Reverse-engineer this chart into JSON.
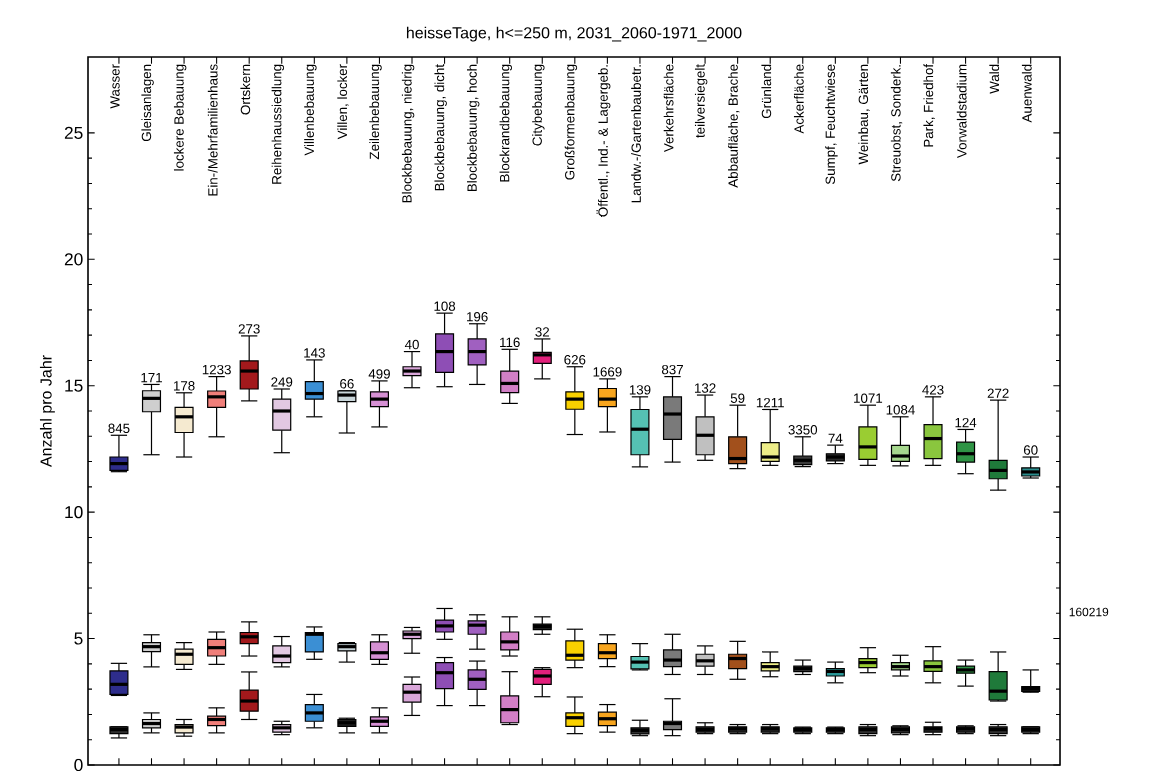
{
  "chart_data": {
    "type": "box",
    "title": "heisseTage, h<=250 m, 2031_2060-1971_2000",
    "ylabel": "Anzahl pro Jahr",
    "categories": [
      "Wasser",
      "Gleisanlagen",
      "lockere Bebauung",
      "Ein-/Mehrfamilienhaus",
      "Ortskern",
      "Reihenhaussiedlung",
      "Villenbebauung",
      "Villen, locker",
      "Zeilenbebauung",
      "Blockbebauung, niedrig",
      "Blockbebauung, dicht",
      "Blockbebauung, hoch",
      "Blockrandbebauung",
      "Citybebauung",
      "Großformenbauung",
      "Öffentl., Ind.- & Lagergeb.",
      "Landw.-/Gartenbaubetr.",
      "Verkehrsfläche",
      "teilversiegelt",
      "Abbaufläche, Brache",
      "Grünland",
      "Ackerfläche",
      "Sumpf, Feuchtwiese",
      "Weinbau, Gärten",
      "Streuobst, Sonderk.",
      "Park, Friedhof",
      "Vorwaldstadium",
      "Wald",
      "Auenwald"
    ],
    "ylim": [
      0,
      28
    ],
    "yticks": [
      0,
      5,
      10,
      15,
      20,
      25
    ],
    "series": [
      {
        "colors": [
          "#2e2d8c",
          "#cfcfcf",
          "#f5ead0",
          "#f07f7a",
          "#a3191c",
          "#e2c8e2",
          "#3b8fd4",
          "#c9d6da",
          "#d690d4",
          "#d9a6d9",
          "#8e4eb5",
          "#a060c0",
          "#d27fc6",
          "#e3207c",
          "#f9d100",
          "#f7a51e",
          "#55c1b3",
          "#7a7a7a",
          "#c0c0c0",
          "#a2501c",
          "#eeee88",
          "#3a3a3a",
          "#2a2a2a",
          "#9acd32",
          "#a6d88e",
          "#8ac63e",
          "#2f9445",
          "#1f7a3a",
          "#2b8e8e"
        ],
        "boxes": [
          {
            "low": 11.6,
            "q1": 11.65,
            "median": 11.92,
            "q3": 12.18,
            "high": 13.04
          },
          {
            "low": 12.27,
            "q1": 13.97,
            "median": 14.5,
            "q3": 14.8,
            "high": 15.05
          },
          {
            "low": 12.18,
            "q1": 13.15,
            "median": 13.77,
            "q3": 14.14,
            "high": 14.72
          },
          {
            "low": 12.98,
            "q1": 14.14,
            "median": 14.56,
            "q3": 14.79,
            "high": 15.36
          },
          {
            "low": 14.4,
            "q1": 14.87,
            "median": 15.58,
            "q3": 15.98,
            "high": 16.97
          },
          {
            "low": 12.35,
            "q1": 13.24,
            "median": 14.0,
            "q3": 14.47,
            "high": 14.87
          },
          {
            "low": 13.77,
            "q1": 14.47,
            "median": 14.69,
            "q3": 15.16,
            "high": 16.02
          },
          {
            "low": 13.13,
            "q1": 14.37,
            "median": 14.63,
            "q3": 14.79,
            "high": 14.8
          },
          {
            "low": 13.37,
            "q1": 14.17,
            "median": 14.47,
            "q3": 14.76,
            "high": 15.19
          },
          {
            "low": 14.92,
            "q1": 15.4,
            "median": 15.58,
            "q3": 15.75,
            "high": 16.35
          },
          {
            "low": 14.96,
            "q1": 15.53,
            "median": 16.35,
            "q3": 17.05,
            "high": 17.87
          },
          {
            "low": 15.05,
            "q1": 15.82,
            "median": 16.35,
            "q3": 16.85,
            "high": 17.45
          },
          {
            "low": 14.3,
            "q1": 14.73,
            "median": 15.09,
            "q3": 15.58,
            "high": 16.44
          },
          {
            "low": 15.27,
            "q1": 15.88,
            "median": 16.22,
            "q3": 16.32,
            "high": 16.85
          },
          {
            "low": 13.07,
            "q1": 14.07,
            "median": 14.47,
            "q3": 14.76,
            "high": 15.75
          },
          {
            "low": 13.17,
            "q1": 14.17,
            "median": 14.47,
            "q3": 14.89,
            "high": 15.27
          },
          {
            "low": 11.79,
            "q1": 12.27,
            "median": 13.28,
            "q3": 14.06,
            "high": 14.56
          },
          {
            "low": 11.98,
            "q1": 12.88,
            "median": 13.88,
            "q3": 14.56,
            "high": 15.36
          },
          {
            "low": 12.05,
            "q1": 12.27,
            "median": 13.04,
            "q3": 13.77,
            "high": 14.63
          },
          {
            "low": 11.72,
            "q1": 11.92,
            "median": 12.12,
            "q3": 12.98,
            "high": 14.23
          },
          {
            "low": 11.85,
            "q1": 12.01,
            "median": 12.18,
            "q3": 12.75,
            "high": 14.06
          },
          {
            "low": 11.8,
            "q1": 11.88,
            "median": 12.05,
            "q3": 12.22,
            "high": 12.98
          },
          {
            "low": 11.92,
            "q1": 12.03,
            "median": 12.18,
            "q3": 12.31,
            "high": 12.65
          },
          {
            "low": 11.85,
            "q1": 12.09,
            "median": 12.58,
            "q3": 13.37,
            "high": 14.23
          },
          {
            "low": 11.83,
            "q1": 12.01,
            "median": 12.22,
            "q3": 12.64,
            "high": 13.77
          },
          {
            "low": 11.85,
            "q1": 12.12,
            "median": 12.91,
            "q3": 13.46,
            "high": 14.56
          },
          {
            "low": 11.52,
            "q1": 11.98,
            "median": 12.31,
            "q3": 12.77,
            "high": 13.27
          },
          {
            "low": 10.87,
            "q1": 11.32,
            "median": 11.65,
            "q3": 12.05,
            "high": 14.43
          },
          {
            "low": 11.35,
            "q1": 11.43,
            "median": 11.59,
            "q3": 11.75,
            "high": 12.18
          }
        ]
      },
      {
        "colors": [
          "#2e2d8c",
          "#cfcfcf",
          "#f5ead0",
          "#f07f7a",
          "#a3191c",
          "#e2c8e2",
          "#3b8fd4",
          "#c9d6da",
          "#d690d4",
          "#d9a6d9",
          "#8e4eb5",
          "#a060c0",
          "#d27fc6",
          "#202020",
          "#f9d100",
          "#f7a51e",
          "#55c1b3",
          "#7a7a7a",
          "#c0c0c0",
          "#a2501c",
          "#eeee88",
          "#404040",
          "#2b9a9a",
          "#9acd32",
          "#a6d88e",
          "#8ac63e",
          "#2f9445",
          "#1f7a3a",
          "#202020"
        ],
        "boxes": [
          {
            "low": 2.75,
            "q1": 2.79,
            "median": 3.19,
            "q3": 3.72,
            "high": 4.02
          },
          {
            "low": 3.88,
            "q1": 4.48,
            "median": 4.68,
            "q3": 4.84,
            "high": 5.15
          },
          {
            "low": 3.78,
            "q1": 3.98,
            "median": 4.38,
            "q3": 4.58,
            "high": 4.84
          },
          {
            "low": 3.98,
            "q1": 4.31,
            "median": 4.64,
            "q3": 4.97,
            "high": 5.26
          },
          {
            "low": 4.31,
            "q1": 4.8,
            "median": 5.07,
            "q3": 5.24,
            "high": 5.66
          },
          {
            "low": 3.88,
            "q1": 4.05,
            "median": 4.31,
            "q3": 4.71,
            "high": 5.08
          },
          {
            "low": 4.18,
            "q1": 4.47,
            "median": 5.17,
            "q3": 5.24,
            "high": 5.46
          },
          {
            "low": 4.07,
            "q1": 4.51,
            "median": 4.68,
            "q3": 4.8,
            "high": 4.84
          },
          {
            "low": 3.98,
            "q1": 4.18,
            "median": 4.44,
            "q3": 4.87,
            "high": 5.15
          },
          {
            "low": 4.42,
            "q1": 5.0,
            "median": 5.17,
            "q3": 5.3,
            "high": 5.44
          },
          {
            "low": 4.97,
            "q1": 5.26,
            "median": 5.5,
            "q3": 5.73,
            "high": 6.19
          },
          {
            "low": 4.58,
            "q1": 5.17,
            "median": 5.53,
            "q3": 5.7,
            "high": 5.94
          },
          {
            "low": 4.31,
            "q1": 4.55,
            "median": 4.87,
            "q3": 5.26,
            "high": 5.86
          },
          {
            "low": 5.17,
            "q1": 5.35,
            "median": 5.48,
            "q3": 5.57,
            "high": 5.86
          },
          {
            "low": 3.85,
            "q1": 4.15,
            "median": 4.34,
            "q3": 4.91,
            "high": 5.37
          },
          {
            "low": 3.89,
            "q1": 4.21,
            "median": 4.44,
            "q3": 4.8,
            "high": 5.15
          },
          {
            "low": 3.76,
            "q1": 3.8,
            "median": 4.07,
            "q3": 4.29,
            "high": 4.8
          },
          {
            "low": 3.58,
            "q1": 3.89,
            "median": 4.15,
            "q3": 4.55,
            "high": 5.17
          },
          {
            "low": 3.58,
            "q1": 3.91,
            "median": 4.12,
            "q3": 4.38,
            "high": 4.71
          },
          {
            "low": 3.39,
            "q1": 3.81,
            "median": 4.21,
            "q3": 4.38,
            "high": 4.89
          },
          {
            "low": 3.49,
            "q1": 3.72,
            "median": 3.89,
            "q3": 4.05,
            "high": 4.47
          },
          {
            "low": 3.58,
            "q1": 3.69,
            "median": 3.81,
            "q3": 3.91,
            "high": 4.15
          },
          {
            "low": 3.25,
            "q1": 3.52,
            "median": 3.7,
            "q3": 3.81,
            "high": 4.07
          },
          {
            "low": 3.65,
            "q1": 3.85,
            "median": 4.05,
            "q3": 4.21,
            "high": 4.64
          },
          {
            "low": 3.52,
            "q1": 3.76,
            "median": 3.89,
            "q3": 4.05,
            "high": 4.34
          },
          {
            "low": 3.25,
            "q1": 3.7,
            "median": 3.89,
            "q3": 4.12,
            "high": 4.68
          },
          {
            "low": 3.12,
            "q1": 3.63,
            "median": 3.76,
            "q3": 3.91,
            "high": 4.15
          },
          {
            "low": 2.53,
            "q1": 2.57,
            "median": 2.92,
            "q3": 3.69,
            "high": 4.47
          },
          {
            "low": 2.88,
            "q1": 2.91,
            "median": 3.02,
            "q3": 3.1,
            "high": 3.76
          }
        ]
      },
      {
        "colors": [
          "#303030",
          "#cfcfcf",
          "#f5ead0",
          "#f07f7a",
          "#a3191c",
          "#e2c8e2",
          "#3b8fd4",
          "#202020",
          "#d690d4",
          "#d9a6d9",
          "#8e4eb5",
          "#a060c0",
          "#d27fc6",
          "#e3207c",
          "#f9d100",
          "#f7a51e",
          "#303030",
          "#7a7a7a",
          "#303030",
          "#303030",
          "#303030",
          "#303030",
          "#303030",
          "#303030",
          "#303030",
          "#303030",
          "#303030",
          "#303030",
          "#303030"
        ],
        "boxes": [
          {
            "low": 1.07,
            "q1": 1.24,
            "median": 1.4,
            "q3": 1.51,
            "high": 1.51
          },
          {
            "low": 1.27,
            "q1": 1.47,
            "median": 1.64,
            "q3": 1.8,
            "high": 2.06
          },
          {
            "low": 1.14,
            "q1": 1.27,
            "median": 1.5,
            "q3": 1.6,
            "high": 1.8
          },
          {
            "low": 1.27,
            "q1": 1.56,
            "median": 1.8,
            "q3": 1.93,
            "high": 2.26
          },
          {
            "low": 1.8,
            "q1": 2.13,
            "median": 2.53,
            "q3": 2.96,
            "high": 3.68
          },
          {
            "low": 1.2,
            "q1": 1.3,
            "median": 1.47,
            "q3": 1.6,
            "high": 1.73
          },
          {
            "low": 1.47,
            "q1": 1.73,
            "median": 2.06,
            "q3": 2.39,
            "high": 2.79
          },
          {
            "low": 1.27,
            "q1": 1.53,
            "median": 1.67,
            "q3": 1.8,
            "high": 1.85
          },
          {
            "low": 1.27,
            "q1": 1.53,
            "median": 1.73,
            "q3": 1.9,
            "high": 2.26
          },
          {
            "low": 1.96,
            "q1": 2.49,
            "median": 2.88,
            "q3": 3.19,
            "high": 3.48
          },
          {
            "low": 2.35,
            "q1": 3.02,
            "median": 3.65,
            "q3": 4.05,
            "high": 4.25
          },
          {
            "low": 2.35,
            "q1": 2.99,
            "median": 3.39,
            "q3": 3.76,
            "high": 4.11
          },
          {
            "low": 1.6,
            "q1": 1.67,
            "median": 2.19,
            "q3": 2.73,
            "high": 3.69
          },
          {
            "low": 2.7,
            "q1": 3.19,
            "median": 3.52,
            "q3": 3.78,
            "high": 3.85
          },
          {
            "low": 1.24,
            "q1": 1.53,
            "median": 1.87,
            "q3": 2.06,
            "high": 2.69
          },
          {
            "low": 1.3,
            "q1": 1.56,
            "median": 1.83,
            "q3": 2.09,
            "high": 2.39
          },
          {
            "low": 1.16,
            "q1": 1.23,
            "median": 1.37,
            "q3": 1.47,
            "high": 1.77
          },
          {
            "low": 1.16,
            "q1": 1.4,
            "median": 1.64,
            "q3": 1.73,
            "high": 2.62
          },
          {
            "low": 1.24,
            "q1": 1.3,
            "median": 1.4,
            "q3": 1.51,
            "high": 1.67
          },
          {
            "low": 1.24,
            "q1": 1.3,
            "median": 1.43,
            "q3": 1.51,
            "high": 1.6
          },
          {
            "low": 1.24,
            "q1": 1.3,
            "median": 1.43,
            "q3": 1.51,
            "high": 1.6
          },
          {
            "low": 1.24,
            "q1": 1.3,
            "median": 1.4,
            "q3": 1.47,
            "high": 1.5
          },
          {
            "low": 1.24,
            "q1": 1.3,
            "median": 1.4,
            "q3": 1.47,
            "high": 1.5
          },
          {
            "low": 1.16,
            "q1": 1.24,
            "median": 1.4,
            "q3": 1.51,
            "high": 1.6
          },
          {
            "low": 1.2,
            "q1": 1.27,
            "median": 1.4,
            "q3": 1.51,
            "high": 1.55
          },
          {
            "low": 1.2,
            "q1": 1.3,
            "median": 1.43,
            "q3": 1.51,
            "high": 1.69
          },
          {
            "low": 1.24,
            "q1": 1.3,
            "median": 1.43,
            "q3": 1.51,
            "high": 1.55
          },
          {
            "low": 1.16,
            "q1": 1.24,
            "median": 1.4,
            "q3": 1.51,
            "high": 1.6
          },
          {
            "low": 1.24,
            "q1": 1.3,
            "median": 1.4,
            "q3": 1.51,
            "high": 1.51
          }
        ]
      }
    ],
    "annotations": [
      {
        "text": "845",
        "x": "Wasser",
        "y": 13.04
      },
      {
        "text": "171",
        "x": "Gleisanlagen",
        "y": 15.05
      },
      {
        "text": "178",
        "x": "lockere Bebauung",
        "y": 14.72
      },
      {
        "text": "1233",
        "x": "Ein-/Mehrfamilienhaus",
        "y": 15.36
      },
      {
        "text": "273",
        "x": "Ortskern",
        "y": 16.97
      },
      {
        "text": "249",
        "x": "Reihenhaussiedlung",
        "y": 14.87
      },
      {
        "text": "143",
        "x": "Villenbebauung",
        "y": 16.02
      },
      {
        "text": "66",
        "x": "Villen, locker",
        "y": 14.8
      },
      {
        "text": "499",
        "x": "Zeilenbebauung",
        "y": 15.19
      },
      {
        "text": "40",
        "x": "Blockbebauung, niedrig",
        "y": 16.35
      },
      {
        "text": "108",
        "x": "Blockbebauung, dicht",
        "y": 17.87
      },
      {
        "text": "196",
        "x": "Blockbebauung, hoch",
        "y": 17.45
      },
      {
        "text": "116",
        "x": "Blockrandbebauung",
        "y": 16.44
      },
      {
        "text": "32",
        "x": "Citybebauung",
        "y": 16.85
      },
      {
        "text": "626",
        "x": "Großformenbauung",
        "y": 15.75
      },
      {
        "text": "1669",
        "x": "Öffentl., Ind.- & Lagergeb.",
        "y": 15.27
      },
      {
        "text": "139",
        "x": "Landw.-/Gartenbaubetr.",
        "y": 14.56
      },
      {
        "text": "837",
        "x": "Verkehrsfläche",
        "y": 15.36
      },
      {
        "text": "132",
        "x": "teilversiegelt",
        "y": 14.63
      },
      {
        "text": "59",
        "x": "Abbaufläche, Brache",
        "y": 14.23
      },
      {
        "text": "1211",
        "x": "Grünland",
        "y": 14.06
      },
      {
        "text": "3350",
        "x": "Ackerfläche",
        "y": 12.98
      },
      {
        "text": "74",
        "x": "Sumpf, Feuchtwiese",
        "y": 12.65
      },
      {
        "text": "1071",
        "x": "Weinbau, Gärten",
        "y": 14.23
      },
      {
        "text": "1084",
        "x": "Streuobst, Sonderk.",
        "y": 13.77
      },
      {
        "text": "423",
        "x": "Park, Friedhof",
        "y": 14.56
      },
      {
        "text": "124",
        "x": "Vorwaldstadium",
        "y": 13.27
      },
      {
        "text": "272",
        "x": "Wald",
        "y": 14.43
      },
      {
        "text": "60",
        "x": "Auenwald",
        "y": 12.18
      },
      "160219"
    ]
  }
}
